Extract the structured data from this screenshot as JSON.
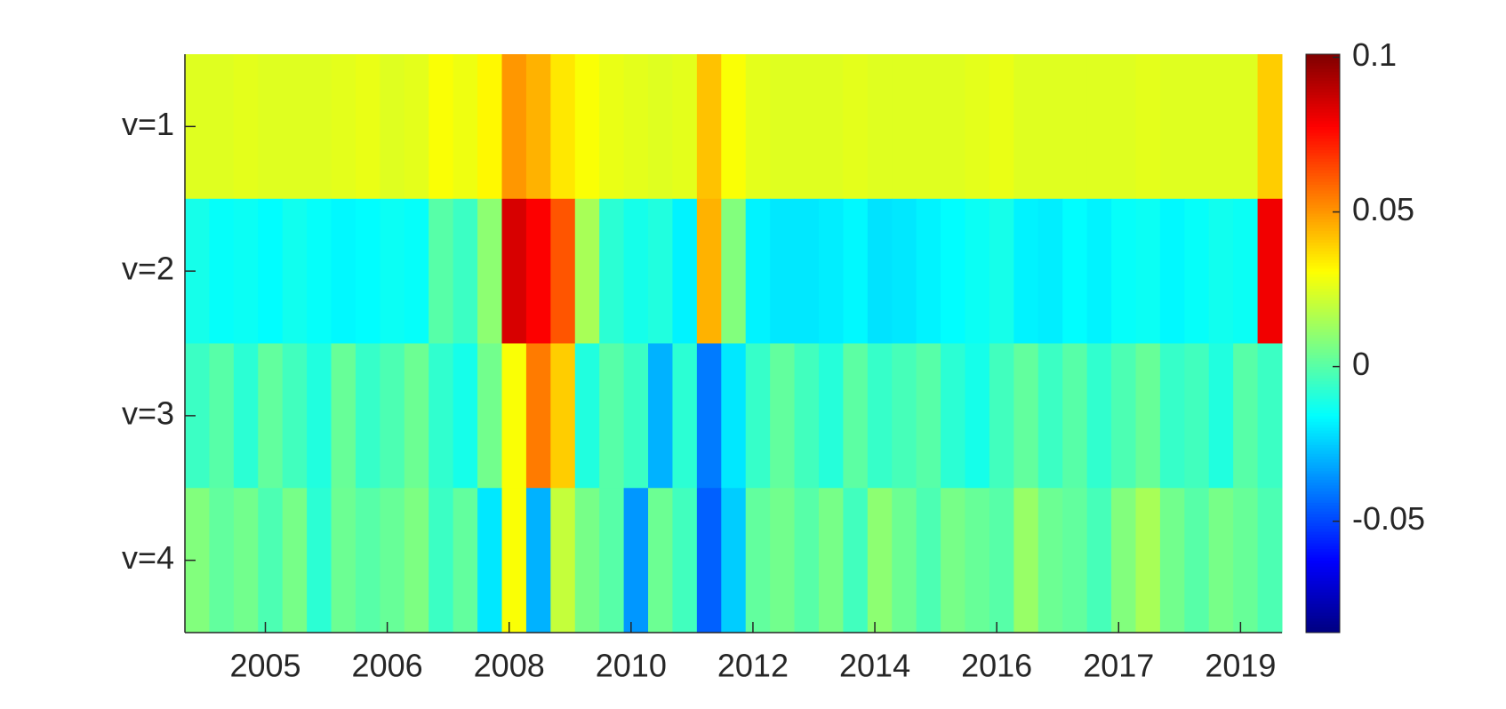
{
  "chart_data": {
    "type": "heatmap",
    "colormap": "jet",
    "y": [
      "v=1",
      "v=2",
      "v=3",
      "v=4"
    ],
    "xlim": [
      0,
      45
    ],
    "xticks": [
      {
        "value": 3.3,
        "label": "2005"
      },
      {
        "value": 8.3,
        "label": "2006"
      },
      {
        "value": 13.3,
        "label": "2008"
      },
      {
        "value": 18.3,
        "label": "2010"
      },
      {
        "value": 23.3,
        "label": "2012"
      },
      {
        "value": 28.3,
        "label": "2014"
      },
      {
        "value": 33.3,
        "label": "2016"
      },
      {
        "value": 38.3,
        "label": "2017"
      },
      {
        "value": 43.3,
        "label": "2019"
      }
    ],
    "clim": [
      -0.086,
      0.101
    ],
    "cticks": [
      0.1,
      0.05,
      0,
      -0.05
    ],
    "values": [
      [
        0.025,
        0.025,
        0.026,
        0.025,
        0.025,
        0.025,
        0.026,
        0.027,
        0.025,
        0.026,
        0.03,
        0.028,
        0.032,
        0.05,
        0.045,
        0.035,
        0.03,
        0.027,
        0.026,
        0.025,
        0.026,
        0.042,
        0.03,
        0.026,
        0.025,
        0.025,
        0.025,
        0.026,
        0.025,
        0.025,
        0.025,
        0.025,
        0.026,
        0.027,
        0.025,
        0.025,
        0.025,
        0.025,
        0.025,
        0.026,
        0.025,
        0.025,
        0.025,
        0.025,
        0.04
      ],
      [
        -0.012,
        -0.015,
        -0.014,
        -0.016,
        -0.013,
        -0.015,
        -0.017,
        -0.016,
        -0.014,
        -0.015,
        0.0,
        -0.005,
        0.01,
        0.085,
        0.078,
        0.062,
        0.015,
        -0.008,
        -0.012,
        -0.01,
        -0.018,
        0.045,
        0.008,
        -0.018,
        -0.02,
        -0.02,
        -0.019,
        -0.017,
        -0.021,
        -0.02,
        -0.018,
        -0.016,
        -0.014,
        -0.012,
        -0.018,
        -0.019,
        -0.016,
        -0.018,
        -0.015,
        -0.014,
        -0.017,
        -0.015,
        -0.013,
        -0.014,
        0.08
      ],
      [
        -0.005,
        0.0,
        -0.008,
        0.002,
        -0.004,
        -0.01,
        0.003,
        -0.006,
        -0.002,
        0.004,
        -0.007,
        -0.012,
        0.005,
        0.03,
        0.055,
        0.04,
        -0.01,
        0.0,
        -0.005,
        -0.03,
        -0.008,
        -0.04,
        -0.02,
        -0.006,
        0.002,
        -0.004,
        -0.009,
        0.001,
        -0.006,
        -0.003,
        0.0,
        -0.008,
        -0.012,
        -0.004,
        0.002,
        -0.005,
        0.0,
        -0.007,
        -0.002,
        0.003,
        -0.006,
        -0.004,
        -0.01,
        0.0,
        -0.005
      ],
      [
        0.008,
        0.002,
        0.005,
        -0.002,
        0.006,
        -0.008,
        0.004,
        0.0,
        0.003,
        0.007,
        -0.005,
        0.002,
        -0.02,
        0.03,
        -0.03,
        0.02,
        0.006,
        0.0,
        -0.035,
        0.004,
        -0.004,
        -0.045,
        -0.025,
        0.002,
        0.005,
        0.0,
        0.006,
        -0.004,
        0.01,
        0.004,
        -0.002,
        0.006,
        0.003,
        0.0,
        0.012,
        0.004,
        0.002,
        -0.003,
        0.008,
        0.015,
        0.005,
        0.0,
        0.006,
        0.003,
        -0.002
      ]
    ]
  }
}
